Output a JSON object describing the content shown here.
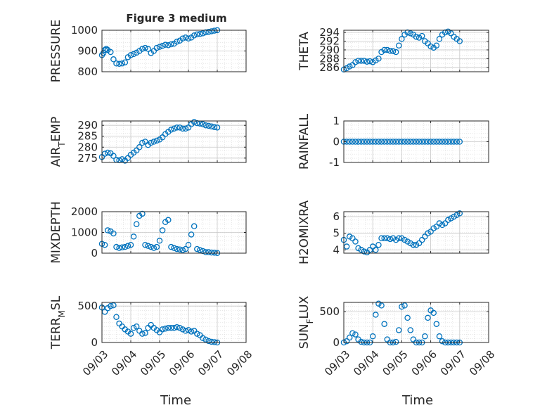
{
  "figure": {
    "title": "Figure 3 medium",
    "xlabel": "Time",
    "xticks": [
      "09/03",
      "09/04",
      "09/05",
      "09/06",
      "09/07",
      "09/08"
    ],
    "marker_color": "#0072BD",
    "grid": "dotted major grid"
  },
  "chart_data": [
    {
      "type": "scatter",
      "ylabel": "PRESSURE",
      "ylim": [
        800,
        1000
      ],
      "yticks": [
        800,
        900,
        1000
      ],
      "x_unit": "days from 09/03",
      "x": [
        0,
        0.05,
        0.1,
        0.15,
        0.2,
        0.3,
        0.4,
        0.5,
        0.6,
        0.7,
        0.8,
        0.9,
        1.0,
        1.1,
        1.2,
        1.3,
        1.4,
        1.5,
        1.6,
        1.7,
        1.8,
        1.9,
        2.0,
        2.1,
        2.2,
        2.3,
        2.4,
        2.5,
        2.6,
        2.7,
        2.8,
        2.9,
        3.0,
        3.1,
        3.2,
        3.3,
        3.4,
        3.5,
        3.6,
        3.7,
        3.8,
        3.9,
        4.0
      ],
      "y": [
        880,
        890,
        905,
        910,
        905,
        895,
        860,
        840,
        838,
        840,
        845,
        870,
        880,
        885,
        892,
        900,
        910,
        915,
        910,
        890,
        900,
        915,
        920,
        925,
        930,
        928,
        932,
        935,
        945,
        950,
        960,
        965,
        960,
        965,
        975,
        980,
        982,
        985,
        990,
        992,
        995,
        998,
        1000
      ]
    },
    {
      "type": "scatter",
      "ylabel": "THETA",
      "ylim": [
        285,
        294.5
      ],
      "yticks": [
        286,
        288,
        290,
        292,
        294
      ],
      "x": [
        0,
        0.1,
        0.2,
        0.3,
        0.4,
        0.5,
        0.6,
        0.7,
        0.8,
        0.9,
        1.0,
        1.1,
        1.2,
        1.3,
        1.4,
        1.5,
        1.6,
        1.7,
        1.8,
        1.9,
        2.0,
        2.1,
        2.2,
        2.3,
        2.4,
        2.5,
        2.6,
        2.7,
        2.8,
        2.9,
        3.0,
        3.1,
        3.2,
        3.3,
        3.4,
        3.5,
        3.6,
        3.7,
        3.8,
        3.9,
        4.0
      ],
      "y": [
        285.5,
        285.8,
        286.2,
        286.5,
        287.2,
        287.5,
        287.5,
        287.5,
        287.3,
        287.4,
        287.2,
        287.6,
        288.0,
        289.5,
        290.0,
        290.0,
        289.8,
        289.7,
        289.5,
        291.0,
        292.5,
        293.5,
        294.0,
        293.8,
        293.5,
        293.0,
        292.8,
        293.2,
        292.0,
        291.5,
        290.8,
        290.5,
        291.0,
        292.5,
        293.5,
        294.0,
        294.2,
        293.8,
        293.0,
        292.5,
        292.0
      ]
    },
    {
      "type": "scatter",
      "ylabel": "AIR_TEMP",
      "ylim": [
        273,
        292
      ],
      "yticks": [
        275,
        280,
        285,
        290
      ],
      "x": [
        0,
        0.1,
        0.2,
        0.3,
        0.4,
        0.5,
        0.6,
        0.7,
        0.8,
        0.9,
        1.0,
        1.1,
        1.2,
        1.3,
        1.4,
        1.5,
        1.6,
        1.7,
        1.8,
        1.9,
        2.0,
        2.1,
        2.2,
        2.3,
        2.4,
        2.5,
        2.6,
        2.7,
        2.8,
        2.9,
        3.0,
        3.1,
        3.2,
        3.3,
        3.4,
        3.5,
        3.6,
        3.7,
        3.8,
        3.9,
        4.0
      ],
      "y": [
        275.5,
        277.0,
        277.5,
        277.2,
        276.0,
        274.2,
        274.0,
        274.5,
        273.8,
        275.0,
        276.5,
        277.5,
        278.5,
        280.0,
        282.0,
        282.5,
        281.0,
        282.0,
        282.5,
        283.0,
        283.5,
        284.5,
        286.0,
        287.0,
        288.0,
        288.5,
        289.0,
        289.0,
        288.5,
        288.5,
        289.0,
        290.5,
        291.5,
        291.0,
        290.8,
        290.5,
        290.0,
        289.8,
        289.5,
        289.2,
        289.0
      ]
    },
    {
      "type": "scatter",
      "ylabel": "RAINFALL",
      "ylim": [
        -1,
        1
      ],
      "yticks": [
        -1,
        0,
        1
      ],
      "x": [
        0,
        0.1,
        0.2,
        0.3,
        0.4,
        0.5,
        0.6,
        0.7,
        0.8,
        0.9,
        1.0,
        1.1,
        1.2,
        1.3,
        1.4,
        1.5,
        1.6,
        1.7,
        1.8,
        1.9,
        2.0,
        2.1,
        2.2,
        2.3,
        2.4,
        2.5,
        2.6,
        2.7,
        2.8,
        2.9,
        3.0,
        3.1,
        3.2,
        3.3,
        3.4,
        3.5,
        3.6,
        3.7,
        3.8,
        3.9,
        4.0
      ],
      "y": [
        0,
        0,
        0,
        0,
        0,
        0,
        0,
        0,
        0,
        0,
        0,
        0,
        0,
        0,
        0,
        0,
        0,
        0,
        0,
        0,
        0,
        0,
        0,
        0,
        0,
        0,
        0,
        0,
        0,
        0,
        0,
        0,
        0,
        0,
        0,
        0,
        0,
        0,
        0,
        0,
        0
      ]
    },
    {
      "type": "scatter",
      "ylabel": "MIXDEPTH",
      "ylim": [
        0,
        2000
      ],
      "yticks": [
        0,
        1000,
        2000
      ],
      "x": [
        0,
        0.1,
        0.2,
        0.3,
        0.4,
        0.5,
        0.6,
        0.7,
        0.8,
        0.9,
        1.0,
        1.1,
        1.2,
        1.3,
        1.4,
        1.5,
        1.6,
        1.7,
        1.8,
        1.9,
        2.0,
        2.1,
        2.2,
        2.3,
        2.4,
        2.5,
        2.6,
        2.7,
        2.8,
        2.9,
        3.0,
        3.1,
        3.2,
        3.3,
        3.4,
        3.5,
        3.6,
        3.7,
        3.8,
        3.9,
        4.0
      ],
      "y": [
        450,
        400,
        1100,
        1050,
        950,
        300,
        250,
        280,
        300,
        350,
        400,
        800,
        1400,
        1800,
        1900,
        400,
        350,
        300,
        250,
        300,
        600,
        1100,
        1500,
        1600,
        300,
        250,
        200,
        180,
        150,
        200,
        400,
        900,
        1300,
        200,
        150,
        100,
        50,
        50,
        30,
        20,
        10
      ]
    },
    {
      "type": "scatter",
      "ylabel": "H2OMIXRA",
      "ylim": [
        3.8,
        6.3
      ],
      "yticks": [
        4,
        5,
        6
      ],
      "x": [
        0,
        0.1,
        0.2,
        0.3,
        0.4,
        0.5,
        0.6,
        0.7,
        0.8,
        0.9,
        1.0,
        1.1,
        1.2,
        1.3,
        1.4,
        1.5,
        1.6,
        1.7,
        1.8,
        1.9,
        2.0,
        2.1,
        2.2,
        2.3,
        2.4,
        2.5,
        2.6,
        2.7,
        2.8,
        2.9,
        3.0,
        3.1,
        3.2,
        3.3,
        3.4,
        3.5,
        3.6,
        3.7,
        3.8,
        3.9,
        4.0
      ],
      "y": [
        4.6,
        4.2,
        4.8,
        4.7,
        4.5,
        4.1,
        4.0,
        3.9,
        3.85,
        4.0,
        4.2,
        4.0,
        4.3,
        4.7,
        4.7,
        4.7,
        4.65,
        4.7,
        4.6,
        4.7,
        4.7,
        4.6,
        4.5,
        4.4,
        4.3,
        4.3,
        4.4,
        4.6,
        4.8,
        5.0,
        5.1,
        5.3,
        5.4,
        5.6,
        5.5,
        5.6,
        5.8,
        5.9,
        6.0,
        6.1,
        6.2
      ]
    },
    {
      "type": "scatter",
      "ylabel": "TERR_MSL",
      "ylim": [
        0,
        550
      ],
      "yticks": [
        0,
        500
      ],
      "x": [
        0,
        0.1,
        0.2,
        0.3,
        0.4,
        0.5,
        0.6,
        0.7,
        0.8,
        0.9,
        1.0,
        1.1,
        1.2,
        1.3,
        1.4,
        1.5,
        1.6,
        1.7,
        1.8,
        1.9,
        2.0,
        2.1,
        2.2,
        2.3,
        2.4,
        2.5,
        2.6,
        2.7,
        2.8,
        2.9,
        3.0,
        3.1,
        3.2,
        3.3,
        3.4,
        3.5,
        3.6,
        3.7,
        3.8,
        3.9,
        4.0
      ],
      "y": [
        480,
        420,
        470,
        500,
        510,
        350,
        260,
        220,
        180,
        150,
        120,
        200,
        220,
        160,
        120,
        130,
        200,
        240,
        200,
        170,
        140,
        180,
        190,
        200,
        200,
        200,
        210,
        200,
        180,
        160,
        170,
        150,
        160,
        120,
        100,
        60,
        40,
        20,
        10,
        5,
        0
      ]
    },
    {
      "type": "scatter",
      "ylabel": "SUN_FLUX",
      "ylim": [
        0,
        650
      ],
      "yticks": [
        0,
        500
      ],
      "x": [
        0,
        0.1,
        0.2,
        0.3,
        0.4,
        0.5,
        0.6,
        0.7,
        0.8,
        0.9,
        1.0,
        1.1,
        1.2,
        1.3,
        1.4,
        1.5,
        1.6,
        1.7,
        1.8,
        1.9,
        2.0,
        2.1,
        2.2,
        2.3,
        2.4,
        2.5,
        2.6,
        2.7,
        2.8,
        2.9,
        3.0,
        3.1,
        3.2,
        3.3,
        3.4,
        3.5,
        3.6,
        3.7,
        3.8,
        3.9,
        4.0
      ],
      "y": [
        0,
        20,
        80,
        150,
        130,
        50,
        10,
        0,
        0,
        0,
        100,
        450,
        630,
        600,
        300,
        50,
        0,
        0,
        10,
        200,
        580,
        600,
        400,
        200,
        50,
        0,
        0,
        0,
        100,
        400,
        520,
        480,
        300,
        100,
        20,
        0,
        0,
        0,
        0,
        0,
        0
      ]
    }
  ]
}
